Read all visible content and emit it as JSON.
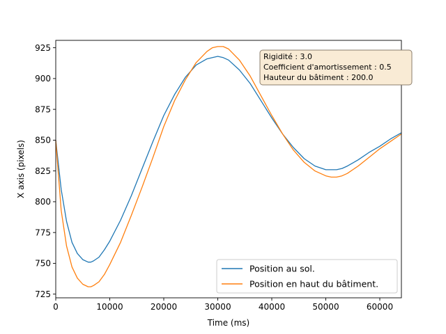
{
  "chart_data": {
    "type": "line",
    "xlabel": "Time (ms)",
    "ylabel": "X axis (pixels)",
    "xlim": [
      0,
      64000
    ],
    "ylim": [
      722,
      931
    ],
    "xticks": [
      0,
      10000,
      20000,
      30000,
      40000,
      50000,
      60000
    ],
    "yticks": [
      725,
      750,
      775,
      800,
      825,
      850,
      875,
      900,
      925
    ],
    "grid": false,
    "legend_position": "bottom-right",
    "series": [
      {
        "name": "Position au sol.",
        "color": "#1f77b4",
        "x": [
          0,
          1000,
          2000,
          3000,
          4000,
          5000,
          6000,
          6500,
          7000,
          8000,
          9000,
          10000,
          12000,
          14000,
          16000,
          18000,
          20000,
          22000,
          24000,
          26000,
          28000,
          29000,
          30000,
          31000,
          32000,
          34000,
          36000,
          38000,
          40000,
          42000,
          44000,
          46000,
          48000,
          50000,
          51000,
          52000,
          53000,
          54000,
          56000,
          58000,
          60000,
          62000,
          64000
        ],
        "y": [
          850,
          810,
          784,
          767,
          758,
          753,
          751,
          751,
          752,
          755,
          761,
          768,
          785,
          805,
          827,
          849,
          870,
          887,
          901,
          911,
          916,
          917,
          918,
          917,
          915,
          907,
          896,
          882,
          868,
          855,
          844,
          835,
          829,
          826,
          826,
          826,
          827,
          829,
          834,
          840,
          845,
          851,
          856
        ]
      },
      {
        "name": "Position en haut du bâtiment.",
        "color": "#ff7f0e",
        "x": [
          0,
          1000,
          2000,
          3000,
          4000,
          5000,
          6000,
          6500,
          7000,
          8000,
          9000,
          10000,
          12000,
          14000,
          16000,
          18000,
          20000,
          22000,
          24000,
          26000,
          28000,
          29000,
          30000,
          31000,
          32000,
          34000,
          36000,
          38000,
          40000,
          42000,
          44000,
          46000,
          48000,
          50000,
          51000,
          52000,
          53000,
          54000,
          56000,
          58000,
          60000,
          62000,
          64000
        ],
        "y": [
          850,
          793,
          764,
          747,
          738,
          733,
          731,
          731,
          732,
          735,
          741,
          749,
          767,
          789,
          812,
          836,
          861,
          882,
          899,
          913,
          922,
          925,
          926,
          926,
          924,
          915,
          902,
          886,
          870,
          855,
          842,
          832,
          825,
          821,
          820,
          820,
          821,
          823,
          829,
          836,
          843,
          849,
          855
        ]
      }
    ],
    "annotation": {
      "lines": [
        "Rigidité : 3.0",
        "Coefficient d'amortissement : 0.5",
        "Hauteur du bâtiment : 200.0"
      ],
      "position": "top-right",
      "background": "#f9ebd5",
      "border": "#8a7d6c"
    }
  }
}
